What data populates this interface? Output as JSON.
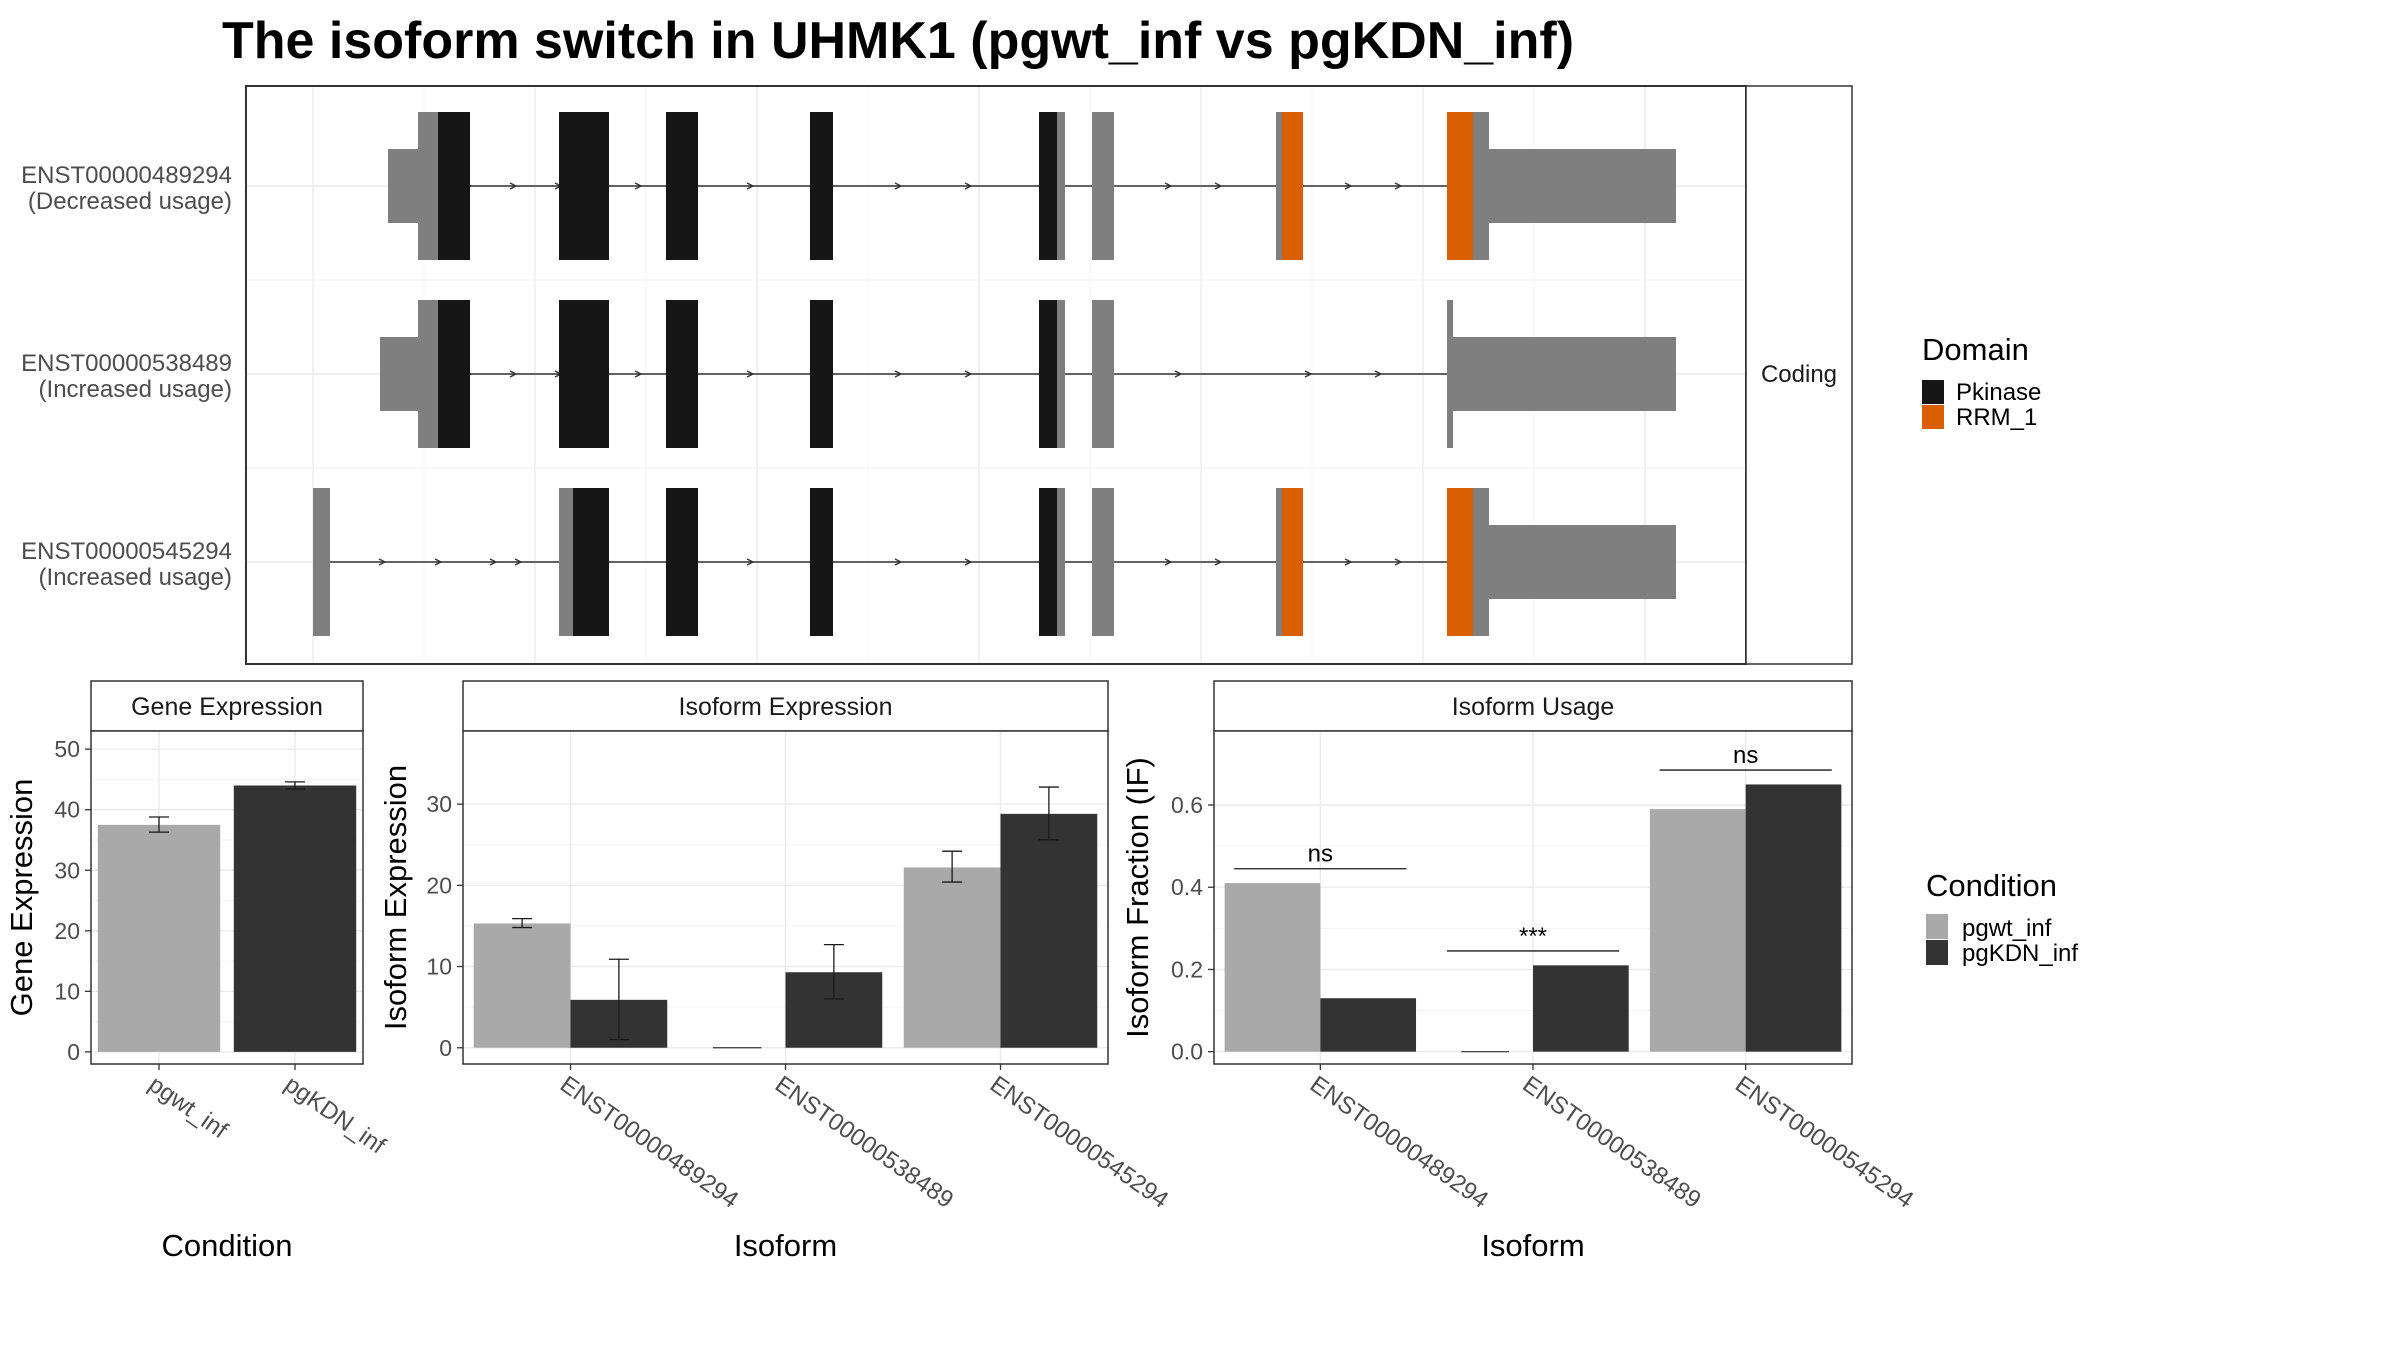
{
  "title": "The isoform switch in UHMK1 (pgwt_inf vs pgKDN_inf)",
  "colors": {
    "pkinase": "#161616",
    "rrm": "#d95f02",
    "noncoding": "#7f7f7f",
    "cond1": "#a9a9a9",
    "cond2": "#333333",
    "grid": "#ebebeb",
    "axis_text": "#4d4d4d"
  },
  "structure": {
    "facet_label": "Coding",
    "isoforms": [
      {
        "id": "ENST00000489294",
        "usage": "(Decreased usage)"
      },
      {
        "id": "ENST00000538489",
        "usage": "(Increased usage)"
      },
      {
        "id": "ENST00000545294",
        "usage": "(Increased usage)"
      }
    ]
  },
  "legend_domain": {
    "title": "Domain",
    "items": [
      {
        "label": "Pkinase",
        "color": "#161616"
      },
      {
        "label": "RRM_1",
        "color": "#d95f02"
      }
    ]
  },
  "legend_condition": {
    "title": "Condition",
    "items": [
      {
        "label": "pgwt_inf",
        "color": "#a9a9a9"
      },
      {
        "label": "pgKDN_inf",
        "color": "#333333"
      }
    ]
  },
  "chart_data": [
    {
      "type": "bar",
      "title": "Gene Expression",
      "xlabel": "Condition",
      "ylabel": "Gene Expression",
      "categories": [
        "pgwt_inf",
        "pgKDN_inf"
      ],
      "values": [
        37.5,
        44.0
      ],
      "errors": [
        [
          36.3,
          38.8
        ],
        [
          43.4,
          44.6
        ]
      ],
      "ylim": [
        -2,
        53
      ],
      "yticks": [
        0,
        10,
        20,
        30,
        40,
        50
      ]
    },
    {
      "type": "bar",
      "title": "Isoform Expression",
      "xlabel": "Isoform",
      "ylabel": "Isoform Expression",
      "categories": [
        "ENST00000489294",
        "ENST00000538489",
        "ENST00000545294"
      ],
      "series": [
        {
          "name": "pgwt_inf",
          "values": [
            15.3,
            0.0,
            22.2
          ],
          "errors": [
            [
              14.8,
              15.9
            ],
            [
              0,
              0
            ],
            [
              20.4,
              24.2
            ]
          ]
        },
        {
          "name": "pgKDN_inf",
          "values": [
            5.9,
            9.3,
            28.8
          ],
          "errors": [
            [
              1.0,
              10.9
            ],
            [
              6.0,
              12.7
            ],
            [
              25.6,
              32.1
            ]
          ]
        }
      ],
      "ylim": [
        -2,
        39
      ],
      "yticks": [
        0,
        10,
        20,
        30
      ]
    },
    {
      "type": "bar",
      "title": "Isoform Usage",
      "xlabel": "Isoform",
      "ylabel": "Isoform Fraction (IF)",
      "categories": [
        "ENST00000489294",
        "ENST00000538489",
        "ENST00000545294"
      ],
      "series": [
        {
          "name": "pgwt_inf",
          "values": [
            0.41,
            0.0,
            0.59
          ]
        },
        {
          "name": "pgKDN_inf",
          "values": [
            0.13,
            0.21,
            0.65
          ]
        }
      ],
      "significance": [
        {
          "category": 0,
          "label": "ns",
          "y": 0.445
        },
        {
          "category": 1,
          "label": "***",
          "y": 0.245
        },
        {
          "category": 2,
          "label": "ns",
          "y": 0.685
        }
      ],
      "ylim": [
        -0.03,
        0.78
      ],
      "yticks": [
        0.0,
        0.2,
        0.4,
        0.6
      ]
    }
  ]
}
